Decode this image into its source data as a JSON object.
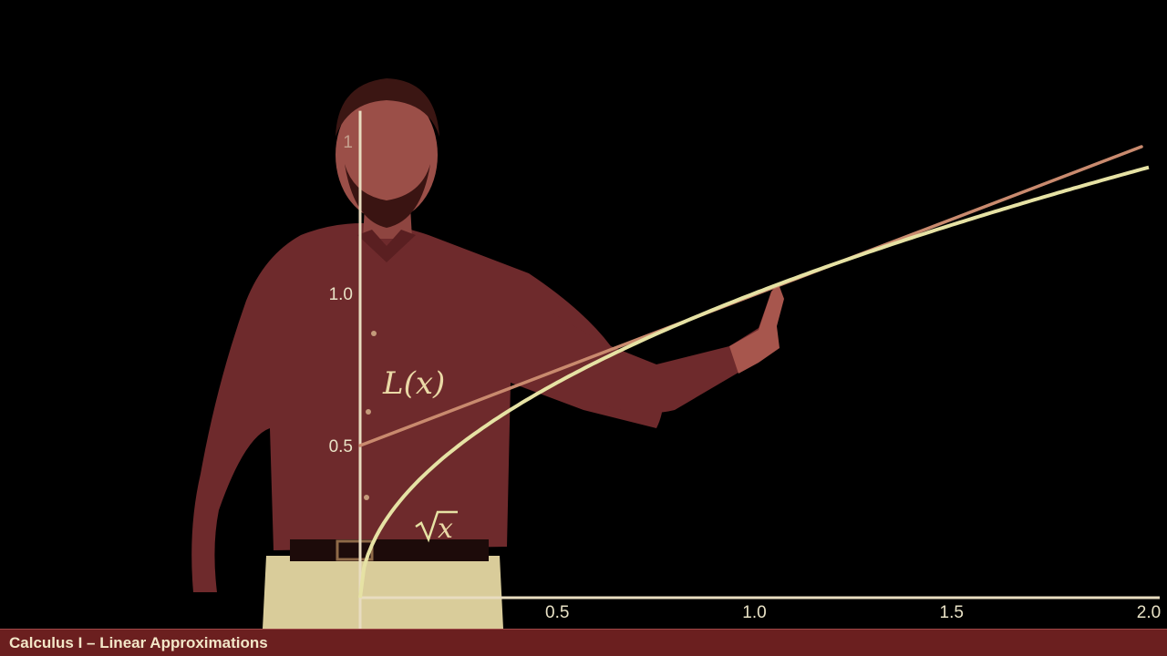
{
  "video": {
    "title_bar": "Calculus I – Linear Approximations"
  },
  "colors": {
    "background": "#000000",
    "sqrt_curve": "#e6e2a4",
    "tangent_line": "#c98a6e",
    "axis": "#e8dcc0",
    "shirt": "#6e2a2c",
    "title_bar": "#6b1f1f"
  },
  "chart_data": {
    "type": "line",
    "x_tick_labels": [
      "0.5",
      "1.0",
      "1.5",
      "2.0"
    ],
    "y_tick_labels": [
      "0.5",
      "1.0"
    ],
    "xlim": [
      0,
      2
    ],
    "ylim": [
      0,
      1.6
    ],
    "series": [
      {
        "name": "L(x)",
        "function": "0.5 + 0.5x",
        "x": [
          0,
          2
        ],
        "y": [
          0.5,
          1.5
        ]
      },
      {
        "name": "√x",
        "function": "sqrt(x)",
        "x": [
          0,
          0.05,
          0.1,
          0.2,
          0.3,
          0.4,
          0.5,
          0.6,
          0.7,
          0.8,
          0.9,
          1.0,
          1.2,
          1.4,
          1.6,
          1.8,
          2.0
        ],
        "y": [
          0,
          0.224,
          0.316,
          0.447,
          0.548,
          0.632,
          0.707,
          0.775,
          0.837,
          0.894,
          0.949,
          1.0,
          1.095,
          1.183,
          1.265,
          1.342,
          1.414
        ]
      }
    ],
    "labels": {
      "tangent": "L(x)",
      "curve_symbol": "x"
    }
  }
}
